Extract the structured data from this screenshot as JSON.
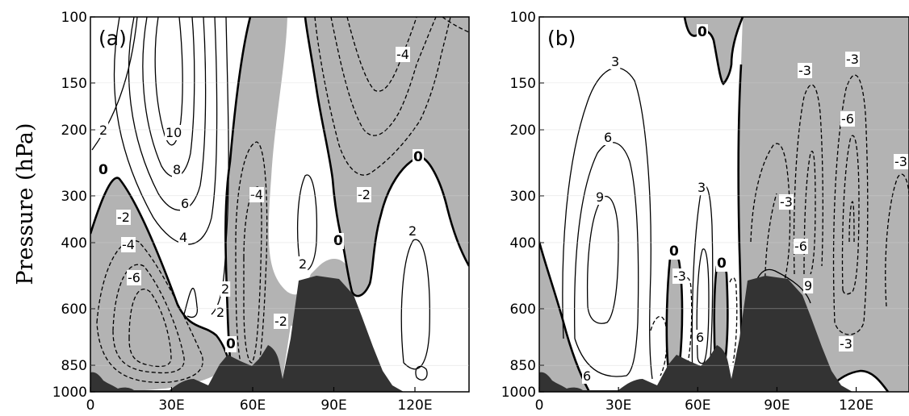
{
  "chart_data": {
    "type": "contour",
    "ylabel": "Pressure (hPa)",
    "y_ticks": [
      "100",
      "150",
      "200",
      "300",
      "400",
      "600",
      "850",
      "1000"
    ],
    "y_tick_values": [
      100,
      150,
      200,
      300,
      400,
      600,
      850,
      1000
    ],
    "x_ticks": [
      "0",
      "30E",
      "60E",
      "90E",
      "120E"
    ],
    "x_tick_values": [
      0,
      30,
      60,
      90,
      120
    ],
    "xlim": [
      0,
      140
    ],
    "ylim": [
      1000,
      100
    ],
    "y_scale": "log",
    "shading": "negative values shaded gray; topography shaded dark",
    "colors": {
      "negative_shading": "#b3b3b3",
      "topography": "#333333",
      "gridline": "#d0d0d0"
    },
    "panels": [
      {
        "label": "(a)",
        "contour_labels": [
          "10",
          "8",
          "6",
          "4",
          "2",
          "2",
          "2",
          "2",
          "2",
          "-2",
          "-4",
          "-6",
          "-4",
          "-2",
          "-2",
          "-4",
          "0",
          "0",
          "0",
          "0"
        ]
      },
      {
        "label": "(b)",
        "contour_labels": [
          "3",
          "6",
          "9",
          "3",
          "6",
          "6",
          "9",
          "-3",
          "-6",
          "-3",
          "-3",
          "-6",
          "-3",
          "-3",
          "-3",
          "0",
          "0",
          "0"
        ]
      }
    ]
  }
}
